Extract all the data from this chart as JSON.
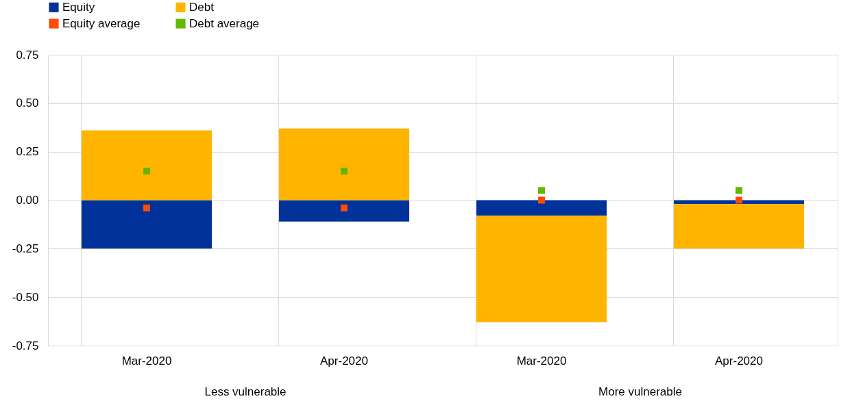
{
  "chart_data": {
    "type": "bar",
    "stacked": true,
    "categories": [
      "Mar-2020",
      "Apr-2020",
      "Mar-2020",
      "Apr-2020"
    ],
    "series": [
      {
        "name": "Equity",
        "color": "#003299",
        "values": [
          -0.25,
          -0.11,
          -0.08,
          -0.02
        ]
      },
      {
        "name": "Debt",
        "color": "#ffb400",
        "values": [
          0.36,
          0.37,
          -0.55,
          -0.23
        ]
      },
      {
        "name": "Equity average",
        "type": "scatter",
        "color": "#ff4b00",
        "values": [
          -0.04,
          -0.04,
          0.0,
          0.0
        ]
      },
      {
        "name": "Debt average",
        "type": "scatter",
        "color": "#65b800",
        "values": [
          0.15,
          0.15,
          0.05,
          0.05
        ]
      }
    ],
    "annotations": [
      "Less vulnerable",
      "More vulnerable"
    ],
    "ylim": [
      -0.75,
      0.75
    ],
    "yticks": [
      {
        "value": -0.75,
        "label": "-0.75"
      },
      {
        "value": -0.5,
        "label": "-0.50"
      },
      {
        "value": -0.25,
        "label": "-0.25"
      },
      {
        "value": 0,
        "label": "0.00"
      },
      {
        "value": 0.25,
        "label": "0.25"
      },
      {
        "value": 0.5,
        "label": "0.50"
      },
      {
        "value": 0.75,
        "label": "0.75"
      }
    ],
    "grid": true,
    "marker": "square",
    "legend": "top left"
  }
}
